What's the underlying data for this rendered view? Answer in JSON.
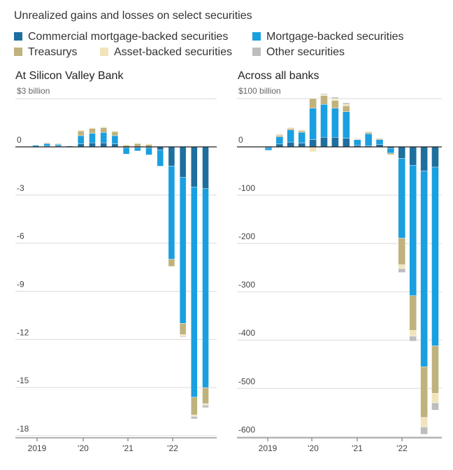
{
  "subtitle": "Unrealized gains and losses on select securities",
  "legend": [
    {
      "key": "cmbs",
      "label": "Commercial mortgage-backed securities",
      "color": "#1f6f9e"
    },
    {
      "key": "mbs",
      "label": "Mortgage-backed securities",
      "color": "#1a9fe0"
    },
    {
      "key": "treas",
      "label": "Treasurys",
      "color": "#bfb27c"
    },
    {
      "key": "abs",
      "label": "Asset-backed securities",
      "color": "#f1e4bb"
    },
    {
      "key": "other",
      "label": "Other securities",
      "color": "#bdbdbd"
    }
  ],
  "chart_data": [
    {
      "type": "bar",
      "stacked": true,
      "title": "At Silicon Valley Bank",
      "unit": "$3 billion",
      "categories": [
        "2019 Q1",
        "2019 Q2",
        "2019 Q3",
        "2019 Q4",
        "2020 Q1",
        "2020 Q2",
        "2020 Q3",
        "2020 Q4",
        "2021 Q1",
        "2021 Q2",
        "2021 Q3",
        "2021 Q4",
        "2022 Q1",
        "2022 Q2",
        "2022 Q3",
        "2022 Q4"
      ],
      "x_tick_labels": [
        "2019",
        "'20",
        "'21",
        "'22"
      ],
      "y_tick_labels": [
        "0",
        "-3",
        "-6",
        "-9",
        "-12",
        "-15",
        "-18"
      ],
      "ylim": [
        -18,
        3
      ],
      "series": [
        {
          "name": "Commercial mortgage-backed securities",
          "values": [
            0.0,
            0.05,
            0.05,
            0.05,
            0.2,
            0.25,
            0.25,
            0.2,
            -0.05,
            -0.05,
            -0.05,
            -0.2,
            -1.2,
            -1.9,
            -2.5,
            -2.6
          ]
        },
        {
          "name": "Mortgage-backed securities",
          "values": [
            0.1,
            0.15,
            0.1,
            0.0,
            0.5,
            0.6,
            0.65,
            0.5,
            -0.4,
            -0.2,
            -0.45,
            -1.0,
            -5.8,
            -9.1,
            -13.1,
            -12.4
          ]
        },
        {
          "name": "Treasurys",
          "values": [
            0.0,
            0.05,
            0.05,
            0.0,
            0.3,
            0.3,
            0.3,
            0.25,
            0.1,
            0.2,
            0.15,
            0.0,
            -0.45,
            -0.7,
            -1.1,
            -1.0
          ]
        },
        {
          "name": "Asset-backed securities",
          "values": [
            0.0,
            0.0,
            0.0,
            0.0,
            0.05,
            0.05,
            0.05,
            0.05,
            0.05,
            0.05,
            0.05,
            0.0,
            0.0,
            -0.1,
            -0.1,
            -0.1
          ]
        },
        {
          "name": "Other securities",
          "values": [
            0.0,
            0.0,
            0.0,
            0.0,
            0.0,
            0.0,
            0.0,
            0.0,
            0.0,
            0.0,
            0.0,
            0.0,
            0.0,
            -0.05,
            -0.15,
            -0.15
          ]
        }
      ]
    },
    {
      "type": "bar",
      "stacked": true,
      "title": "Across all banks",
      "unit": "$100 billion",
      "categories": [
        "2019 Q1",
        "2019 Q2",
        "2019 Q3",
        "2019 Q4",
        "2020 Q1",
        "2020 Q2",
        "2020 Q3",
        "2020 Q4",
        "2021 Q1",
        "2021 Q2",
        "2021 Q3",
        "2021 Q4",
        "2022 Q1",
        "2022 Q2",
        "2022 Q3",
        "2022 Q4"
      ],
      "x_tick_labels": [
        "2019",
        "'20",
        "'21",
        "'22"
      ],
      "y_tick_labels": [
        "0",
        "-100",
        "-200",
        "-300",
        "-400",
        "-500",
        "-600"
      ],
      "ylim": [
        -600,
        100
      ],
      "series": [
        {
          "name": "Commercial mortgage-backed securities",
          "values": [
            -2,
            6,
            10,
            8,
            15,
            20,
            20,
            18,
            3,
            2,
            5,
            -3,
            -24,
            -38,
            -50,
            -42
          ]
        },
        {
          "name": "Mortgage-backed securities",
          "values": [
            -5,
            15,
            25,
            22,
            65,
            68,
            60,
            55,
            12,
            25,
            10,
            -10,
            -165,
            -270,
            -405,
            -370
          ]
        },
        {
          "name": "Treasurys",
          "values": [
            0,
            3,
            3,
            3,
            20,
            18,
            16,
            12,
            0,
            3,
            2,
            -3,
            -55,
            -72,
            -105,
            -98
          ]
        },
        {
          "name": "Asset-backed securities",
          "values": [
            0,
            2,
            2,
            2,
            -10,
            2,
            4,
            3,
            2,
            1,
            0,
            0,
            -8,
            -12,
            -20,
            -20
          ]
        },
        {
          "name": "Other securities",
          "values": [
            0,
            1,
            1,
            1,
            0,
            2,
            3,
            3,
            1,
            1,
            0,
            0,
            -8,
            -10,
            -15,
            -15
          ]
        }
      ]
    }
  ]
}
